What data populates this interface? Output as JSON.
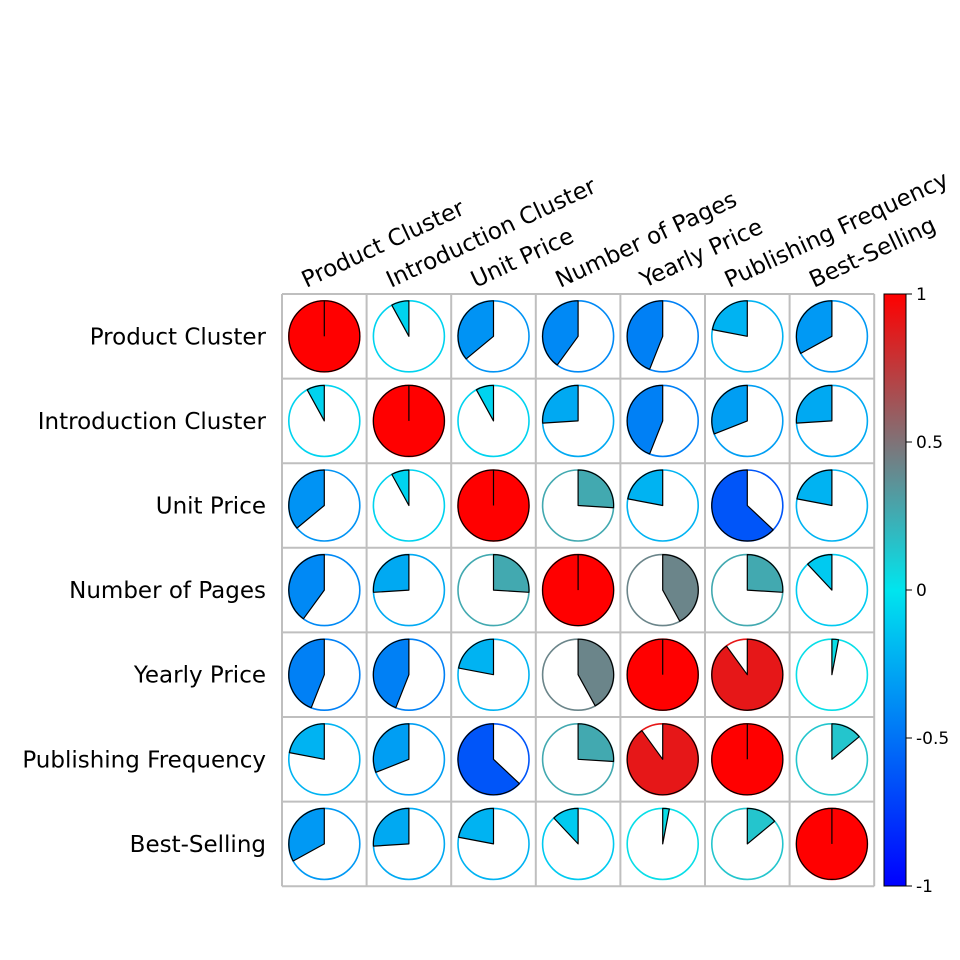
{
  "chart_data": {
    "type": "heatmap",
    "glyph": "pie",
    "variables": [
      "Product Cluster",
      "Introduction Cluster",
      "Unit Price",
      "Number of Pages",
      "Yearly Price",
      "Publishing Frequency",
      "Best-Selling"
    ],
    "matrix": [
      [
        1.0,
        -0.08,
        -0.36,
        -0.4,
        -0.44,
        -0.22,
        -0.33
      ],
      [
        -0.08,
        1.0,
        -0.08,
        -0.26,
        -0.44,
        -0.31,
        -0.26
      ],
      [
        -0.36,
        -0.08,
        1.0,
        0.26,
        -0.22,
        -0.63,
        -0.22
      ],
      [
        -0.4,
        -0.26,
        0.26,
        1.0,
        0.42,
        0.26,
        -0.12
      ],
      [
        -0.44,
        -0.44,
        -0.22,
        0.42,
        1.0,
        0.9,
        0.03
      ],
      [
        -0.22,
        -0.31,
        -0.63,
        0.26,
        0.9,
        1.0,
        0.14
      ],
      [
        -0.33,
        -0.26,
        -0.22,
        -0.12,
        0.03,
        0.14,
        1.0
      ]
    ],
    "colorbar": {
      "range": [
        -1,
        1
      ],
      "ticks": [
        1,
        0.5,
        0,
        -0.5,
        -1
      ],
      "tick_labels": [
        "1",
        "0.5",
        "0",
        "-0.5",
        "-1"
      ],
      "colors": [
        "#0000ff",
        "#00e5ee",
        "#ff0000"
      ]
    },
    "grid": true,
    "legend": "right"
  }
}
